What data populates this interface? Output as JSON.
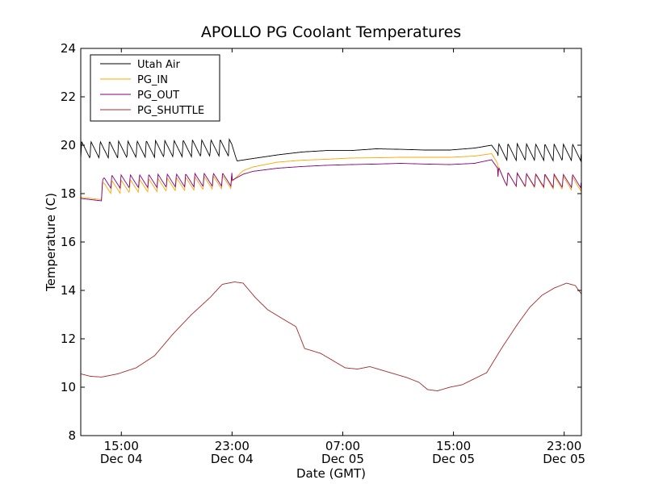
{
  "chart_data": {
    "type": "line",
    "title": "APOLLO PG Coolant Temperatures",
    "xlabel": "Date (GMT)",
    "ylabel": "Temperature (C)",
    "ylim": [
      8,
      24
    ],
    "xlim_hours": [
      0,
      40.7
    ],
    "yticks": [
      8,
      10,
      12,
      14,
      16,
      18,
      20,
      22,
      24
    ],
    "xticks": [
      {
        "hour": 3.3,
        "time": "15:00",
        "date": "Dec 04"
      },
      {
        "hour": 12.3,
        "time": "23:00",
        "date": "Dec 04"
      },
      {
        "hour": 21.3,
        "time": "07:00",
        "date": "Dec 05"
      },
      {
        "hour": 30.3,
        "time": "15:00",
        "date": "Dec 05"
      },
      {
        "hour": 39.3,
        "time": "23:00",
        "date": "Dec 05"
      }
    ],
    "legend_position": "top-left",
    "series": [
      {
        "name": "Utah Air",
        "color": "#000000",
        "sawtooth": {
          "period_hours": 0.75,
          "segments": [
            [
              0,
              12.3
            ],
            [
              33.9,
              40.7
            ]
          ],
          "low": 19.45,
          "high": 20.15
        },
        "points": [
          [
            0,
            19.8
          ],
          [
            12.3,
            20.0
          ],
          [
            12.7,
            19.35
          ],
          [
            14,
            19.45
          ],
          [
            16,
            19.6
          ],
          [
            18,
            19.72
          ],
          [
            20,
            19.78
          ],
          [
            22,
            19.78
          ],
          [
            24,
            19.85
          ],
          [
            26,
            19.83
          ],
          [
            28,
            19.8
          ],
          [
            30,
            19.8
          ],
          [
            32,
            19.88
          ],
          [
            33.4,
            20.0
          ],
          [
            33.9,
            19.65
          ],
          [
            40.7,
            19.6
          ]
        ]
      },
      {
        "name": "PG_IN",
        "color": "#ffa500",
        "sawtooth": {
          "period_hours": 0.75,
          "segments": [
            [
              1.7,
              12.3
            ],
            [
              33.9,
              40.7
            ]
          ],
          "low": 18.2,
          "high": 18.75
        },
        "points": [
          [
            0,
            17.85
          ],
          [
            1.7,
            17.75
          ],
          [
            1.9,
            18.05
          ],
          [
            12.3,
            18.5
          ],
          [
            13.2,
            18.95
          ],
          [
            14,
            19.1
          ],
          [
            16,
            19.3
          ],
          [
            18,
            19.38
          ],
          [
            20,
            19.42
          ],
          [
            22,
            19.47
          ],
          [
            24,
            19.48
          ],
          [
            26,
            19.5
          ],
          [
            28,
            19.5
          ],
          [
            30,
            19.5
          ],
          [
            32,
            19.55
          ],
          [
            33.4,
            19.65
          ],
          [
            34.5,
            18.75
          ],
          [
            36,
            18.6
          ],
          [
            38,
            18.5
          ],
          [
            40.7,
            18.3
          ]
        ]
      },
      {
        "name": "PG_OUT",
        "color": "#800080",
        "sawtooth": {
          "period_hours": 0.75,
          "segments": [
            [
              1.7,
              12.3
            ],
            [
              33.9,
              40.7
            ]
          ],
          "low": 18.35,
          "high": 18.9
        },
        "points": [
          [
            0,
            17.8
          ],
          [
            1.7,
            17.7
          ],
          [
            1.9,
            18.35
          ],
          [
            12.3,
            18.55
          ],
          [
            13.2,
            18.8
          ],
          [
            14,
            18.92
          ],
          [
            16,
            19.05
          ],
          [
            18,
            19.12
          ],
          [
            20,
            19.17
          ],
          [
            22,
            19.2
          ],
          [
            24,
            19.22
          ],
          [
            26,
            19.25
          ],
          [
            28,
            19.22
          ],
          [
            30,
            19.2
          ],
          [
            32,
            19.25
          ],
          [
            33.4,
            19.4
          ],
          [
            34.5,
            18.6
          ],
          [
            36,
            18.5
          ],
          [
            38,
            18.45
          ],
          [
            40.7,
            18.4
          ]
        ]
      },
      {
        "name": "PG_SHUTTLE",
        "color": "#a52a2a",
        "points": [
          [
            0,
            10.55
          ],
          [
            0.8,
            10.45
          ],
          [
            1.7,
            10.42
          ],
          [
            3,
            10.55
          ],
          [
            4.5,
            10.8
          ],
          [
            6,
            11.3
          ],
          [
            7.5,
            12.2
          ],
          [
            9,
            13.0
          ],
          [
            10.5,
            13.7
          ],
          [
            11.5,
            14.25
          ],
          [
            12.5,
            14.35
          ],
          [
            13.2,
            14.3
          ],
          [
            14.2,
            13.7
          ],
          [
            15.2,
            13.2
          ],
          [
            16.5,
            12.8
          ],
          [
            17.5,
            12.5
          ],
          [
            18.2,
            11.6
          ],
          [
            19.5,
            11.4
          ],
          [
            20.5,
            11.1
          ],
          [
            21.5,
            10.8
          ],
          [
            22.5,
            10.75
          ],
          [
            23.5,
            10.85
          ],
          [
            24.5,
            10.7
          ],
          [
            25.5,
            10.55
          ],
          [
            26.5,
            10.4
          ],
          [
            27.5,
            10.2
          ],
          [
            28.2,
            9.9
          ],
          [
            29,
            9.85
          ],
          [
            30,
            10.0
          ],
          [
            31,
            10.1
          ],
          [
            32,
            10.35
          ],
          [
            33,
            10.6
          ],
          [
            34.2,
            11.6
          ],
          [
            35.5,
            12.6
          ],
          [
            36.5,
            13.3
          ],
          [
            37.5,
            13.8
          ],
          [
            38.5,
            14.1
          ],
          [
            39.5,
            14.3
          ],
          [
            40.2,
            14.2
          ],
          [
            40.7,
            13.85
          ]
        ]
      }
    ]
  }
}
